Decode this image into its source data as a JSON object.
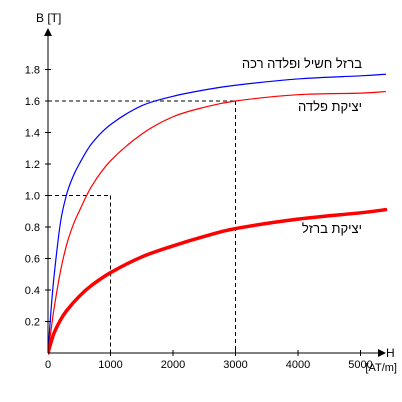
{
  "chart_data": {
    "type": "line",
    "xlabel": "H",
    "xunit": "[AT/m]",
    "ylabel": "B [T]",
    "xlim": [
      0,
      5500
    ],
    "ylim": [
      0,
      1.95
    ],
    "x_ticks": [
      "0",
      "1000",
      "2000",
      "3000",
      "4000",
      "5000"
    ],
    "y_ticks": [
      "0.2",
      "0.4",
      "0.6",
      "0.8",
      "1.0",
      "1.2",
      "1.4",
      "1.6",
      "1.8"
    ],
    "grid": false,
    "series": [
      {
        "name": "ברזל חשיל ופלדה רכה",
        "color": "#0000ff",
        "x": [
          0,
          50,
          100,
          200,
          300,
          400,
          500,
          700,
          1000,
          1500,
          2000,
          2500,
          3000,
          4000,
          5000,
          5400
        ],
        "y": [
          0,
          0.28,
          0.5,
          0.83,
          1.01,
          1.12,
          1.2,
          1.33,
          1.45,
          1.57,
          1.63,
          1.67,
          1.7,
          1.74,
          1.76,
          1.77
        ]
      },
      {
        "name": "יציקת פלדה",
        "color": "#ff0000",
        "x": [
          0,
          50,
          100,
          200,
          300,
          400,
          500,
          700,
          1000,
          1500,
          2000,
          2500,
          3000,
          4000,
          5000,
          5400
        ],
        "y": [
          0,
          0.15,
          0.29,
          0.52,
          0.69,
          0.81,
          0.9,
          1.06,
          1.22,
          1.39,
          1.5,
          1.56,
          1.6,
          1.64,
          1.65,
          1.66
        ]
      },
      {
        "name": "יציקת ברזל",
        "color": "#ff0000",
        "x": [
          0,
          50,
          100,
          200,
          300,
          500,
          700,
          1000,
          1500,
          2000,
          2500,
          3000,
          4000,
          5000,
          5400
        ],
        "y": [
          0,
          0.07,
          0.13,
          0.21,
          0.27,
          0.36,
          0.43,
          0.51,
          0.61,
          0.68,
          0.74,
          0.79,
          0.85,
          0.89,
          0.91
        ]
      }
    ],
    "reference_lines": [
      {
        "x": 1000,
        "y": 1.0
      },
      {
        "x": 3000,
        "y": 1.6
      }
    ]
  }
}
